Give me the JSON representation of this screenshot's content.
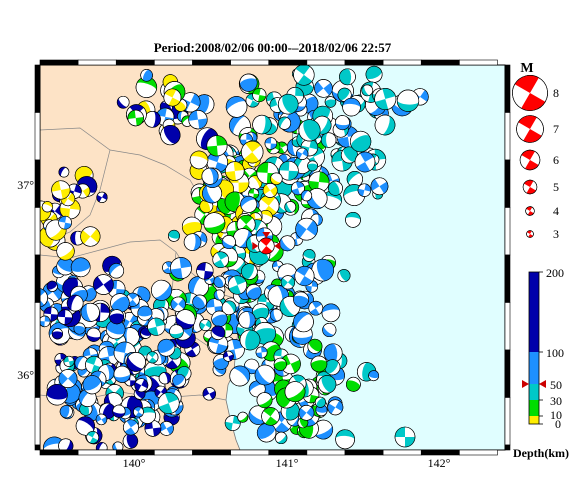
{
  "title": "Period:2008/02/06 00:00-–2018/02/06 22:57",
  "map": {
    "lon_range": [
      139.4,
      142.4
    ],
    "lat_range": [
      35.6,
      37.6
    ],
    "lon_ticks": [
      "140°",
      "141°",
      "142°"
    ],
    "lat_ticks": [
      "37°",
      "36°"
    ],
    "land_color": "#fde3c6",
    "sea_color": "#e0feff"
  },
  "magnitude_legend": {
    "title": "M",
    "entries": [
      {
        "label": "8",
        "m": 8
      },
      {
        "label": "7",
        "m": 7
      },
      {
        "label": "6",
        "m": 6
      },
      {
        "label": "5",
        "m": 5
      },
      {
        "label": "4",
        "m": 4
      },
      {
        "label": "3",
        "m": 3
      }
    ],
    "color": "#ff0000"
  },
  "depth_scale": {
    "label": "Depth(km)",
    "ticks": [
      "200",
      "100",
      "50",
      "30",
      "10",
      "0"
    ],
    "marker_value": 50,
    "colors": {
      "shallow": "#ffee00",
      "mid1": "#00dd00",
      "mid2": "#00c8c8",
      "mid3": "#1e90ff",
      "deep": "#0000aa"
    }
  },
  "highlight_event": {
    "lon": 140.86,
    "lat": 36.66,
    "color": "#ff0000"
  }
}
